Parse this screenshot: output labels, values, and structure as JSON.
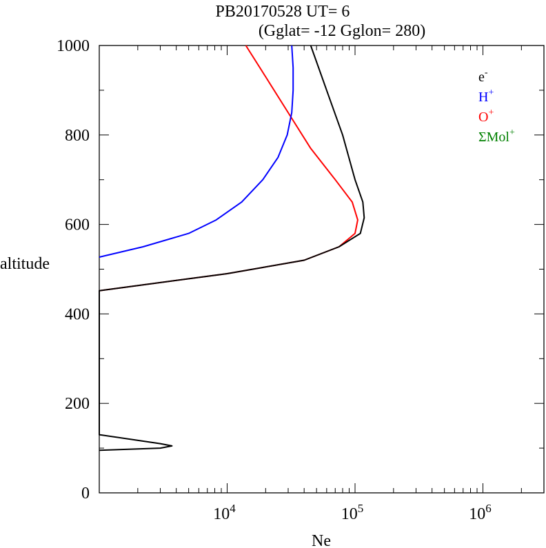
{
  "chart_data": {
    "type": "line",
    "title_line1": "PB20170528   UT=  6",
    "title_line2": "(Gglat= -12   Gglon=  280)",
    "xlabel": "Ne",
    "ylabel": "altitude",
    "x_scale": "log",
    "xlim": [
      1000,
      3000000
    ],
    "ylim": [
      0,
      1000
    ],
    "x_ticks": [
      {
        "value": 10000,
        "base": "10",
        "exp": "4"
      },
      {
        "value": 100000,
        "base": "10",
        "exp": "5"
      },
      {
        "value": 1000000,
        "base": "10",
        "exp": "6"
      }
    ],
    "y_ticks": [
      {
        "value": 0,
        "label": "0"
      },
      {
        "value": 200,
        "label": "200"
      },
      {
        "value": 400,
        "label": "400"
      },
      {
        "value": 600,
        "label": "600"
      },
      {
        "value": 800,
        "label": "800"
      },
      {
        "value": 1000,
        "label": "1000"
      }
    ],
    "y_minor_step": 100,
    "grid": false,
    "legend_position": "top-right",
    "series": [
      {
        "name": "e",
        "sup": "-",
        "color": "#000000",
        "x": [
          1000,
          3000,
          3700,
          3000,
          1000,
          1000,
          10000,
          40000,
          75000,
          110000,
          118000,
          115000,
          100000,
          80000,
          60000,
          45000
        ],
        "y": [
          95,
          100,
          105,
          110,
          130,
          452,
          490,
          520,
          550,
          580,
          615,
          650,
          700,
          800,
          900,
          1000
        ]
      },
      {
        "name": "H",
        "sup": "+",
        "color": "#0000ff",
        "x": [
          1000,
          2200,
          5000,
          8200,
          13000,
          19000,
          25000,
          29500,
          32000,
          32800,
          32800,
          32000
        ],
        "y": [
          527,
          550,
          580,
          610,
          650,
          700,
          750,
          800,
          850,
          900,
          950,
          1000
        ]
      },
      {
        "name": "O",
        "sup": "+",
        "color": "#ff0000",
        "x": [
          1000,
          10000,
          40000,
          75000,
          100000,
          105000,
          95000,
          70000,
          45000,
          30000,
          20000,
          14000
        ],
        "y": [
          452,
          490,
          520,
          550,
          580,
          610,
          650,
          700,
          770,
          850,
          930,
          1000
        ]
      },
      {
        "name": "ΣMol",
        "sup": "+",
        "color": "#008000",
        "x": [],
        "y": []
      }
    ]
  }
}
